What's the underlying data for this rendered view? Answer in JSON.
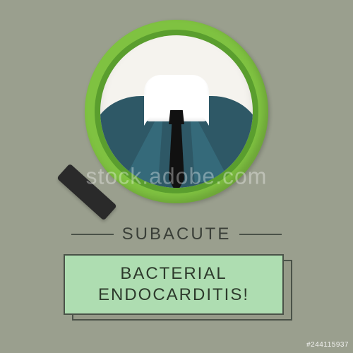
{
  "background_color": "#9a9f8e",
  "magnifier": {
    "ring_color": "#7fc241",
    "inner_ring_color": "#5a9e2e",
    "glass_color": "#f5f3ee",
    "handle_color": "#2a2a2a"
  },
  "suit": {
    "jacket_color": "#2e5866",
    "lapel_color": "#356a7a",
    "shirt_color": "#ffffff",
    "tie_color": "#111111"
  },
  "text": {
    "line1": "Subacute",
    "line2": "Bacterial Endocarditis!",
    "line1_fontsize": 24,
    "line2_fontsize": 24,
    "text_color": "#3a3f38",
    "box_fill": "#aeddb1",
    "box_border": "#4a5248"
  },
  "watermark": "stock.adobe.com",
  "stock_id": "#244115937"
}
